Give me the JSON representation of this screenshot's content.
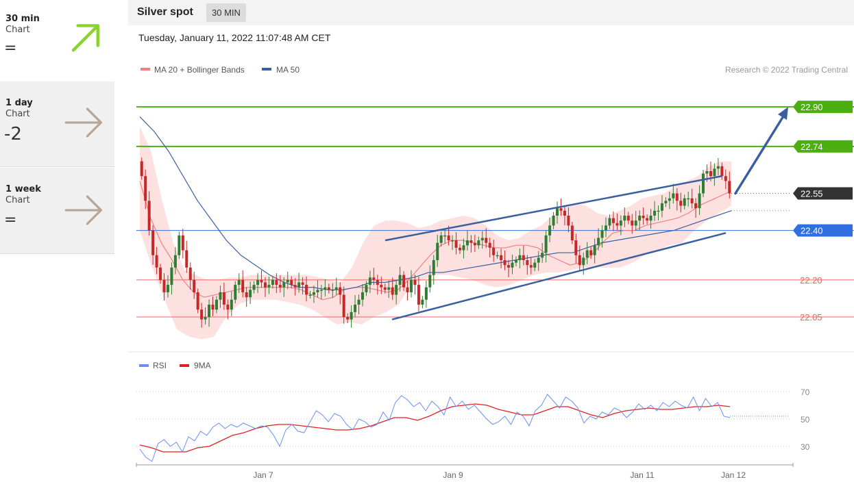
{
  "sidebar": {
    "items": [
      {
        "period": "30 min",
        "type": "Chart",
        "score": "=",
        "arrow": "up-right-arrow-icon",
        "arrow_color": "#8bd32a",
        "active": true
      },
      {
        "period": "1 day",
        "type": "Chart",
        "score": "-2",
        "arrow": "right-arrow-icon",
        "arrow_color": "#b5a89a",
        "active": false
      },
      {
        "period": "1 week",
        "type": "Chart",
        "score": "=",
        "arrow": "right-arrow-icon",
        "arrow_color": "#b5a89a",
        "active": false
      }
    ]
  },
  "header": {
    "title": "Silver spot",
    "timeframe": "30 MIN",
    "datetime": "Tuesday, January 11, 2022 11:07:48 AM CET"
  },
  "colors": {
    "resistance": "#4caf10",
    "support": "#f06060",
    "pivot": "#2f6fe0",
    "last": "#333333",
    "ma20": "#f08080",
    "band": "#fde0e0",
    "ma50": "#3a5fa0",
    "channel": "#3a5fa0",
    "bull": "#2e7d32",
    "bear": "#c62828",
    "rsi": "#6a8ff0",
    "rsi_ma": "#e02020"
  },
  "chart_data": [
    {
      "type": "candlestick",
      "title": "Silver spot",
      "legend": [
        {
          "name": "MA 20 + Bollinger Bands",
          "color": "#f08080"
        },
        {
          "name": "MA 50",
          "color": "#3a5fa0"
        }
      ],
      "copyright": "Research © 2022 Trading Central",
      "ylim": [
        21.92,
        23.0
      ],
      "x_ticks": [
        "Jan 7",
        "Jan 9",
        "Jan 11",
        "Jan 12"
      ],
      "levels": [
        {
          "value": "22.90",
          "kind": "resistance"
        },
        {
          "value": "22.74",
          "kind": "resistance"
        },
        {
          "value": "22.55",
          "kind": "last"
        },
        {
          "value": "22.40",
          "kind": "pivot"
        },
        {
          "value": "22.20",
          "kind": "support"
        },
        {
          "value": "22.05",
          "kind": "support"
        }
      ],
      "closes": [
        22.62,
        22.52,
        22.4,
        22.3,
        22.25,
        22.2,
        22.15,
        22.18,
        22.25,
        22.3,
        22.38,
        22.32,
        22.25,
        22.2,
        22.15,
        22.08,
        22.04,
        22.05,
        22.1,
        22.08,
        22.12,
        22.15,
        22.1,
        22.08,
        22.12,
        22.18,
        22.2,
        22.15,
        22.13,
        22.16,
        22.18,
        22.2,
        22.19,
        22.17,
        22.18,
        22.2,
        22.18,
        22.17,
        22.19,
        22.2,
        22.18,
        22.17,
        22.19,
        22.18,
        22.14,
        22.14,
        22.15,
        22.16,
        22.16,
        22.17,
        22.16,
        22.16,
        22.17,
        22.14,
        22.05,
        22.04,
        22.07,
        22.1,
        22.12,
        22.15,
        22.18,
        22.21,
        22.2,
        22.18,
        22.17,
        22.16,
        22.17,
        22.14,
        22.18,
        22.22,
        22.17,
        22.15,
        22.2,
        22.18,
        22.1,
        22.12,
        22.17,
        22.22,
        22.28,
        22.35,
        22.38,
        22.38,
        22.36,
        22.36,
        22.33,
        22.32,
        22.34,
        22.36,
        22.35,
        22.34,
        22.36,
        22.37,
        22.35,
        22.33,
        22.3,
        22.3,
        22.28,
        22.26,
        22.25,
        22.27,
        22.28,
        22.3,
        22.28,
        22.26,
        22.25,
        22.27,
        22.29,
        22.31,
        22.38,
        22.42,
        22.46,
        22.49,
        22.48,
        22.46,
        22.42,
        22.36,
        22.3,
        22.26,
        22.29,
        22.32,
        22.3,
        22.34,
        22.37,
        22.4,
        22.42,
        22.45,
        22.43,
        22.42,
        22.44,
        22.46,
        22.44,
        22.42,
        22.44,
        22.46,
        22.45,
        22.44,
        22.46,
        22.48,
        22.48,
        22.51,
        22.52,
        22.53,
        22.55,
        22.52,
        22.5,
        22.53,
        22.53,
        22.51,
        22.49,
        22.55,
        22.63,
        22.64,
        22.62,
        22.65,
        22.66,
        22.62,
        22.6,
        22.55
      ],
      "ma20": [
        22.6,
        22.45,
        22.35,
        22.28,
        22.2,
        22.15,
        22.13,
        22.14,
        22.15,
        22.16,
        22.17,
        22.17,
        22.17,
        22.17,
        22.17,
        22.16,
        22.14,
        22.12,
        22.13,
        22.16,
        22.17,
        22.17,
        22.16,
        22.15,
        22.16,
        22.2,
        22.25,
        22.3,
        22.34,
        22.36,
        22.36,
        22.35,
        22.34,
        22.33,
        22.33,
        22.34,
        22.34,
        22.33,
        22.3,
        22.28,
        22.26,
        22.27,
        22.3,
        22.35,
        22.39,
        22.4,
        22.4,
        22.42,
        22.43,
        22.44,
        22.45,
        22.47,
        22.5,
        22.52,
        22.54,
        22.56
      ],
      "band_upper": [
        22.82,
        22.72,
        22.52,
        22.35,
        22.24,
        22.22,
        22.2,
        22.2,
        22.21,
        22.21,
        22.22,
        22.22,
        22.22,
        22.22,
        22.22,
        22.22,
        22.21,
        22.2,
        22.19,
        22.25,
        22.35,
        22.42,
        22.44,
        22.44,
        22.43,
        22.41,
        22.42,
        22.44,
        22.45,
        22.46,
        22.45,
        22.42,
        22.38,
        22.36,
        22.37,
        22.4,
        22.42,
        22.46,
        22.5,
        22.51,
        22.5,
        22.47,
        22.46,
        22.48,
        22.5,
        22.53,
        22.54,
        22.55,
        22.58,
        22.6,
        22.62,
        22.66,
        22.68,
        22.68
      ],
      "band_lower": [
        22.4,
        22.25,
        22.12,
        22.0,
        21.97,
        21.96,
        21.97,
        22.05,
        22.1,
        22.12,
        22.12,
        22.12,
        22.11,
        22.1,
        22.08,
        22.05,
        22.02,
        22.03,
        22.02,
        22.05,
        22.07,
        22.1,
        22.18,
        22.2,
        22.22,
        22.22,
        22.21,
        22.2,
        22.18,
        22.17,
        22.18,
        22.2,
        22.22,
        22.23,
        22.23,
        22.24,
        22.25,
        22.25,
        22.25,
        22.25,
        22.27,
        22.3,
        22.32,
        22.34,
        22.35,
        22.4,
        22.44,
        22.47,
        22.5
      ],
      "ma50": [
        22.86,
        22.8,
        22.72,
        22.62,
        22.52,
        22.44,
        22.36,
        22.3,
        22.26,
        22.22,
        22.19,
        22.17,
        22.17,
        22.16,
        22.16,
        22.17,
        22.19,
        22.19,
        22.2,
        22.21,
        22.23,
        22.23,
        22.24,
        22.25,
        22.26,
        22.27,
        22.28,
        22.29,
        22.3,
        22.31,
        22.31,
        22.33,
        22.35,
        22.36,
        22.37,
        22.38,
        22.39,
        22.4,
        22.42,
        22.44,
        22.46,
        22.48
      ],
      "channel_upper": {
        "from": 22.36,
        "to": 22.62
      },
      "channel_lower": {
        "from": 22.04,
        "to": 22.39
      },
      "target_arrow": {
        "from": 22.55,
        "to": 22.9
      }
    },
    {
      "type": "line",
      "legend": [
        {
          "name": "RSI",
          "color": "#6a8ff0"
        },
        {
          "name": "9MA",
          "color": "#e02020"
        }
      ],
      "ylim": [
        18,
        82
      ],
      "y_ticks": [
        "70",
        "50",
        "30"
      ],
      "series": [
        {
          "name": "RSI",
          "values": [
            28,
            22,
            19,
            32,
            35,
            30,
            33,
            26,
            37,
            34,
            41,
            38,
            44,
            47,
            43,
            46,
            44,
            47,
            45,
            43,
            45,
            44,
            38,
            30,
            42,
            46,
            41,
            40,
            48,
            56,
            53,
            48,
            54,
            52,
            46,
            42,
            50,
            48,
            44,
            46,
            55,
            49,
            62,
            67,
            64,
            59,
            62,
            56,
            63,
            59,
            53,
            66,
            59,
            63,
            57,
            60,
            55,
            50,
            46,
            48,
            52,
            46,
            55,
            52,
            45,
            56,
            60,
            68,
            63,
            58,
            66,
            63,
            58,
            47,
            52,
            50,
            55,
            53,
            58,
            56,
            51,
            55,
            61,
            57,
            60,
            56,
            62,
            59,
            63,
            60,
            58,
            66,
            56,
            65,
            59,
            62,
            52,
            51
          ]
        },
        {
          "name": "9MA",
          "values": [
            31,
            29,
            26,
            26,
            26,
            29,
            30,
            34,
            38,
            40,
            43,
            45,
            46,
            46,
            45,
            44,
            43,
            42,
            42,
            43,
            45,
            48,
            51,
            51,
            49,
            52,
            56,
            59,
            60,
            61,
            60,
            57,
            55,
            53,
            53,
            56,
            59,
            59,
            56,
            53,
            51,
            54,
            56,
            57,
            58,
            57,
            57,
            58,
            59,
            59,
            60,
            59
          ]
        }
      ]
    }
  ]
}
